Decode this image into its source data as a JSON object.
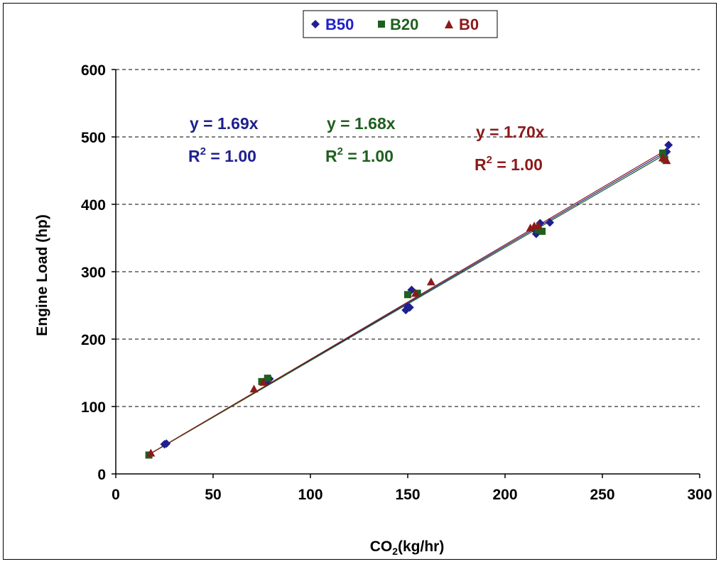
{
  "chart_data": {
    "type": "scatter",
    "title": "",
    "xlabel": {
      "main": "CO",
      "sub": "2",
      "rest": "(kg/hr)"
    },
    "ylabel": "Engine Load (hp)",
    "xlim": [
      0,
      300
    ],
    "ylim": [
      0,
      600
    ],
    "xticks": [
      "0",
      "50",
      "100",
      "150",
      "200",
      "250",
      "300"
    ],
    "yticks": [
      "0",
      "100",
      "200",
      "300",
      "400",
      "500",
      "600"
    ],
    "xtick_values": [
      0,
      50,
      100,
      150,
      200,
      250,
      300
    ],
    "ytick_values": [
      0,
      100,
      200,
      300,
      400,
      500,
      600
    ],
    "grid": "horizontal-dashed",
    "legend_position": "top-center",
    "series": [
      {
        "name": "B50",
        "marker": "diamond",
        "color": "#1F1F8F",
        "label_color": "#1F1FCC",
        "slope": 1.69,
        "equation": "y = 1.69x",
        "r2_label": "R",
        "r2_sup": "2",
        "r2_value": " = 1.00",
        "x": [
          26,
          25,
          78,
          79,
          149,
          150,
          152,
          151,
          216,
          218,
          223,
          216,
          284,
          283
        ],
        "y": [
          45,
          44,
          138,
          141,
          243,
          248,
          273,
          247,
          356,
          372,
          373,
          360,
          488,
          478
        ]
      },
      {
        "name": "B20",
        "marker": "square",
        "color": "#1F5F1F",
        "label_color": "#1F5F1F",
        "slope": 1.68,
        "equation": "y = 1.68x",
        "r2_label": "R",
        "r2_sup": "2",
        "r2_value": " = 1.00",
        "x": [
          17,
          75,
          78,
          150,
          155,
          217,
          219,
          281,
          282
        ],
        "y": [
          28,
          137,
          142,
          266,
          268,
          362,
          360,
          476,
          467
        ]
      },
      {
        "name": "B0",
        "marker": "triangle",
        "color": "#8B1A1A",
        "label_color": "#8B1A1A",
        "slope": 1.7,
        "equation": "y = 1.70x",
        "r2_label": "R",
        "r2_sup": "2",
        "r2_value": " = 1.00",
        "x": [
          18,
          71,
          76,
          154,
          162,
          213,
          215,
          217,
          281,
          283
        ],
        "y": [
          31,
          126,
          136,
          268,
          285,
          365,
          368,
          369,
          469,
          465
        ]
      }
    ]
  }
}
